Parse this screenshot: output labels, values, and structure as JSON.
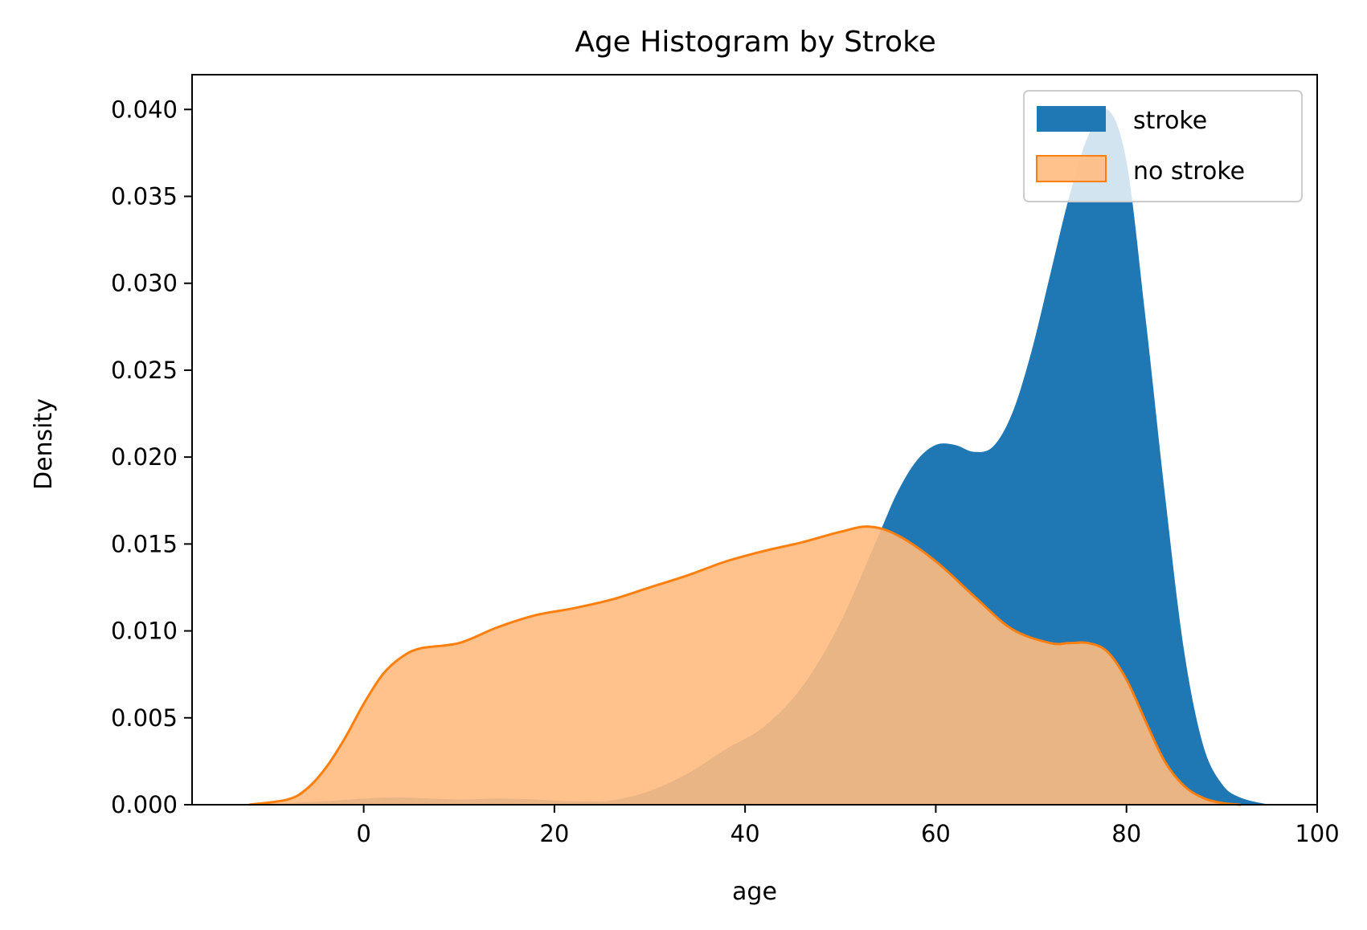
{
  "chart_data": {
    "type": "area",
    "title": "Age Histogram by Stroke",
    "xlabel": "age",
    "ylabel": "Density",
    "xlim": [
      -18,
      100
    ],
    "ylim": [
      0,
      0.042
    ],
    "x_ticks": [
      0,
      20,
      40,
      60,
      80,
      100
    ],
    "x_tick_labels": [
      "0",
      "20",
      "40",
      "60",
      "80",
      "100"
    ],
    "y_ticks": [
      0,
      0.005,
      0.01,
      0.015,
      0.02,
      0.025,
      0.03,
      0.035,
      0.04
    ],
    "y_tick_labels": [
      "0.000",
      "0.005",
      "0.010",
      "0.015",
      "0.020",
      "0.025",
      "0.030",
      "0.035",
      "0.040"
    ],
    "grid": false,
    "legend_position": "top-right",
    "series": [
      {
        "name": "stroke",
        "color": "#1f77b4",
        "fill_opacity": 1.0,
        "draw_line": false,
        "x": [
          -12,
          -8,
          -4,
          0,
          2,
          5,
          10,
          14,
          18,
          22,
          26,
          30,
          34,
          38,
          42,
          46,
          50,
          54,
          56,
          58,
          60,
          62,
          64,
          66,
          68,
          70,
          72,
          74,
          76,
          78,
          80,
          82,
          84,
          86,
          88,
          90,
          92,
          95
        ],
        "y": [
          0.0,
          0.0001,
          0.0002,
          0.00035,
          0.0004,
          0.0004,
          0.0003,
          0.00035,
          0.0003,
          0.0002,
          0.00025,
          0.0008,
          0.0018,
          0.0032,
          0.0045,
          0.0068,
          0.0105,
          0.0155,
          0.018,
          0.0198,
          0.0207,
          0.0207,
          0.0203,
          0.0206,
          0.0225,
          0.026,
          0.0305,
          0.035,
          0.0385,
          0.04,
          0.037,
          0.028,
          0.018,
          0.009,
          0.0035,
          0.0012,
          0.0004,
          0.0
        ]
      },
      {
        "name": "no stroke",
        "color": "#ff7f0e",
        "fill_color": "#ffbb80",
        "fill_opacity": 0.9,
        "draw_line": true,
        "x": [
          -12,
          -8,
          -6,
          -4,
          -2,
          0,
          2,
          4,
          6,
          10,
          14,
          18,
          22,
          26,
          30,
          34,
          38,
          42,
          46,
          50,
          53,
          56,
          60,
          64,
          68,
          72,
          74,
          76,
          78,
          80,
          82,
          84,
          86,
          88,
          90,
          92
        ],
        "y": [
          0.0,
          0.0003,
          0.0009,
          0.0021,
          0.0038,
          0.0058,
          0.0075,
          0.0085,
          0.009,
          0.0093,
          0.0102,
          0.0109,
          0.0113,
          0.0118,
          0.0125,
          0.0132,
          0.014,
          0.0146,
          0.0151,
          0.0157,
          0.016,
          0.0155,
          0.014,
          0.012,
          0.0101,
          0.0093,
          0.0093,
          0.0093,
          0.0088,
          0.0072,
          0.0048,
          0.0025,
          0.0011,
          0.0004,
          0.0001,
          0.0
        ]
      }
    ]
  }
}
